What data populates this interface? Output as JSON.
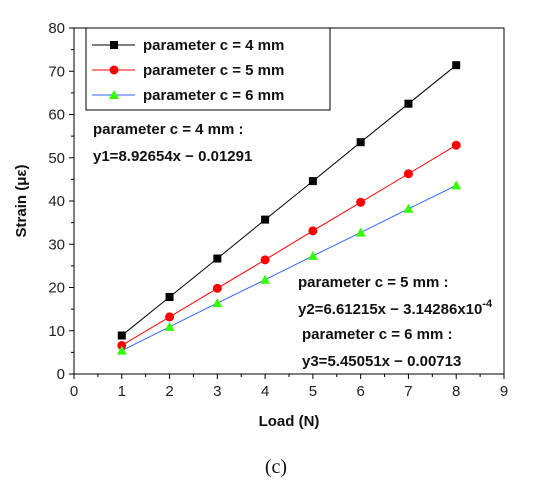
{
  "chart_data": {
    "type": "line",
    "xlabel": "Load (N)",
    "ylabel": "Strain (με)",
    "xlim": [
      0,
      9
    ],
    "ylim": [
      0,
      80
    ],
    "x_ticks": [
      "0",
      "1",
      "2",
      "3",
      "4",
      "5",
      "6",
      "7",
      "8",
      "9"
    ],
    "y_ticks": [
      "0",
      "10",
      "20",
      "30",
      "40",
      "50",
      "60",
      "70",
      "80"
    ],
    "x": [
      1,
      2,
      3,
      4,
      5,
      6,
      7,
      8
    ],
    "series": [
      {
        "name": "parameter c = 4 mm",
        "color": "#000000",
        "marker": "square",
        "values": [
          8.9,
          17.8,
          26.7,
          35.7,
          44.6,
          53.6,
          62.5,
          71.4
        ]
      },
      {
        "name": "parameter c = 5 mm",
        "color": "#ff0000",
        "marker": "circle",
        "values": [
          6.6,
          13.2,
          19.8,
          26.4,
          33.1,
          39.7,
          46.3,
          52.9
        ]
      },
      {
        "name": "parameter c = 6 mm",
        "color": "#3366ff",
        "marker_color": "#33ff00",
        "marker": "triangle",
        "values": [
          5.4,
          10.9,
          16.4,
          21.8,
          27.3,
          32.7,
          38.2,
          43.6
        ]
      }
    ],
    "legend_position": "top-left",
    "grid": false,
    "annotations": [
      {
        "lines": [
          "parameter c = 4 mm :",
          "y1=8.92654x − 0.01291"
        ]
      },
      {
        "lines": [
          "parameter c = 5 mm :",
          "y2=6.61215x − 3.14286x10",
          "-4"
        ]
      },
      {
        "lines": [
          "parameter c = 6 mm :",
          "y3=5.45051x − 0.00713"
        ]
      }
    ]
  },
  "caption": "(c)"
}
